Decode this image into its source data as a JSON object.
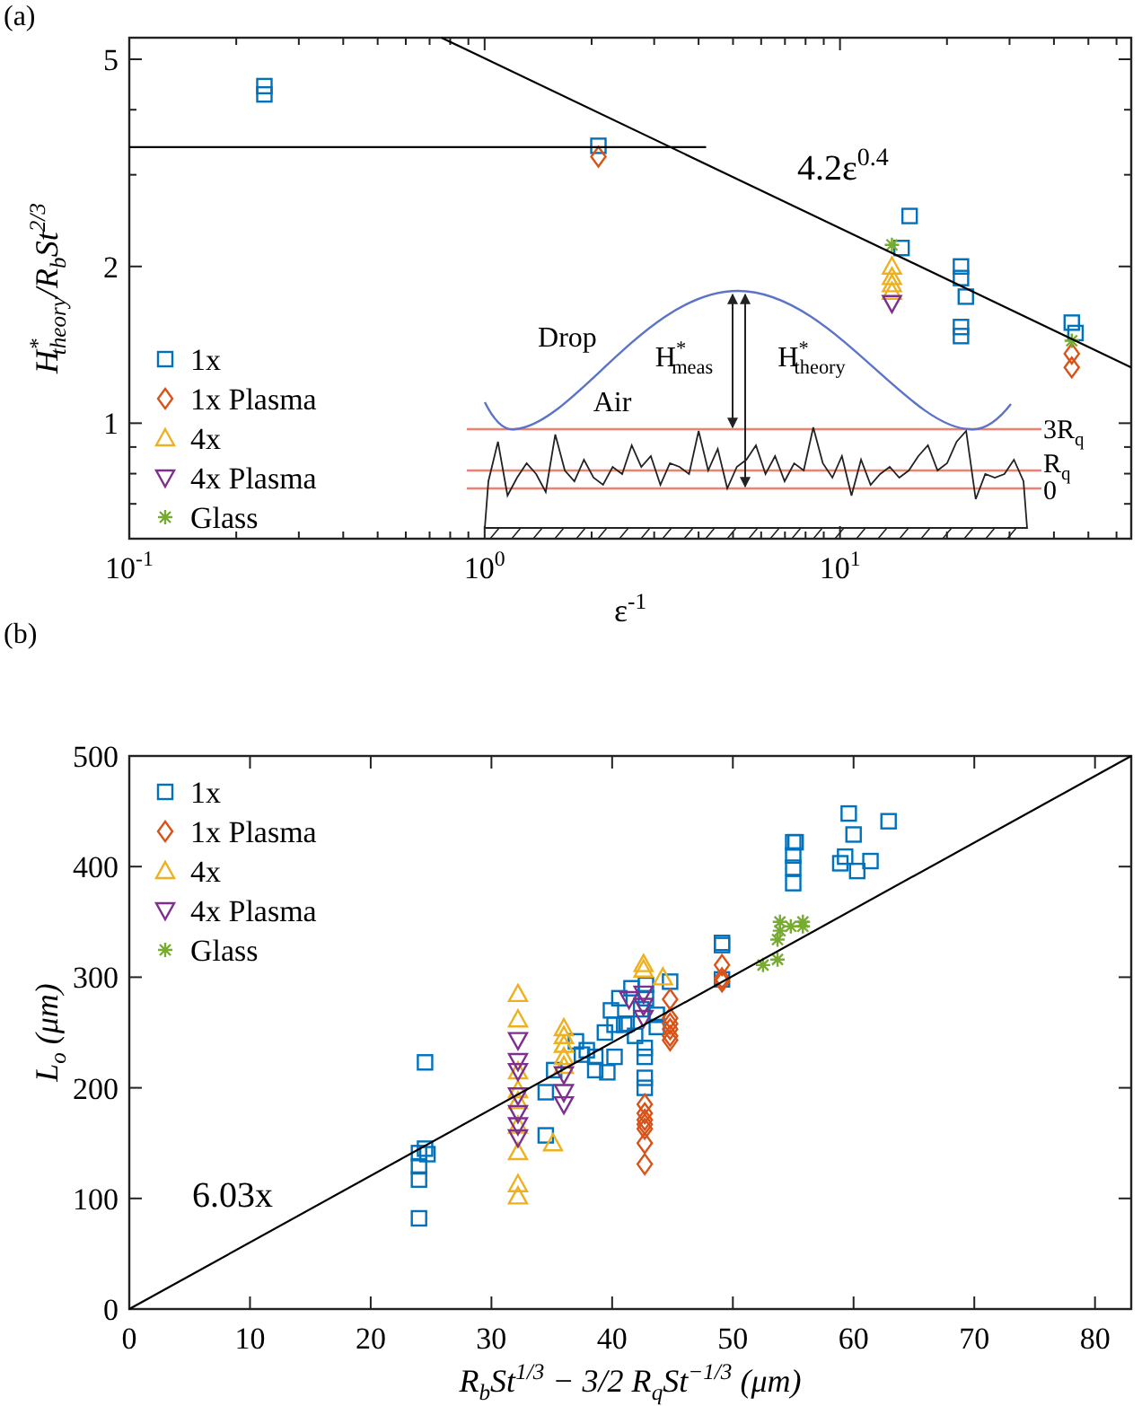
{
  "chart_data": [
    {
      "type": "scatter",
      "title": "(a)",
      "xlabel": "ε$^{-1}$",
      "ylabel": "H$^{*}$$_{theory}$/R$_{b}$St$^{2/3}$",
      "log": "xy",
      "legend": "bottom left",
      "xlim": [
        0.1,
        66
      ],
      "ylim": [
        0.6,
        5.5
      ],
      "xticks": [
        {
          "value": 0.1,
          "label": "10$^{-1}$"
        },
        {
          "value": 0.2,
          "label": null
        },
        {
          "value": 0.3,
          "label": null
        },
        {
          "value": 0.4,
          "label": null
        },
        {
          "value": 0.5,
          "label": null
        },
        {
          "value": 0.6,
          "label": null
        },
        {
          "value": 0.7,
          "label": null
        },
        {
          "value": 0.8,
          "label": null
        },
        {
          "value": 0.9,
          "label": null
        },
        {
          "value": 1,
          "label": "10$^{0}$"
        },
        {
          "value": 2,
          "label": null
        },
        {
          "value": 3,
          "label": null
        },
        {
          "value": 4,
          "label": null
        },
        {
          "value": 5,
          "label": null
        },
        {
          "value": 6,
          "label": null
        },
        {
          "value": 7,
          "label": null
        },
        {
          "value": 8,
          "label": null
        },
        {
          "value": 9,
          "label": null
        },
        {
          "value": 10,
          "label": "10$^{1}$"
        },
        {
          "value": 20,
          "label": null
        },
        {
          "value": 30,
          "label": null
        },
        {
          "value": 40,
          "label": null
        },
        {
          "value": 50,
          "label": null
        },
        {
          "value": 60,
          "label": null
        }
      ],
      "yticks": [
        {
          "value": 0.6,
          "label": null
        },
        {
          "value": 0.7,
          "label": null
        },
        {
          "value": 0.8,
          "label": null
        },
        {
          "value": 0.9,
          "label": null
        },
        1,
        2,
        {
          "value": 3,
          "label": null
        },
        {
          "value": 4,
          "label": null
        },
        5
      ],
      "annotations": [
        "Drop",
        "Air",
        "H$^{*}$$_{meas}$",
        "H$^{*}$$_{theory}$",
        "3R$_{q}$",
        "R$_{q}$",
        "0"
      ],
      "series": [
        {
          "name": "1x",
          "color": "#0072bd",
          "marker": "square",
          "x": [
            0.24,
            0.24,
            2.09,
            14.9,
            15.7,
            21.9,
            21.9,
            22.6,
            21.9,
            21.9,
            44.9,
            46
          ],
          "values": [
            4.44,
            4.28,
            3.41,
            2.17,
            2.5,
            2.0,
            1.9,
            1.75,
            1.53,
            1.47,
            1.56,
            1.49
          ]
        },
        {
          "name": "1x Plasma",
          "color": "#d95319",
          "marker": "diamond",
          "x": [
            2.09,
            44.9,
            44.9
          ],
          "values": [
            3.25,
            1.36,
            1.28
          ]
        },
        {
          "name": "4x",
          "color": "#edb120",
          "marker": "triangle",
          "x": [
            14,
            14,
            14,
            14
          ],
          "values": [
            2.0,
            1.91,
            1.85,
            1.79
          ]
        },
        {
          "name": "4x Plasma",
          "color": "#7e2f8e",
          "marker": "triangle-down",
          "x": [
            14
          ],
          "values": [
            1.7
          ]
        },
        {
          "name": "Glass",
          "color": "#77ac30",
          "marker": "cross",
          "x": [
            14,
            44.9
          ],
          "values": [
            2.2,
            1.44
          ]
        },
        {
          "type": "line",
          "color": "#000000",
          "marker": "none",
          "x": [
            0.1,
            4.2
          ],
          "values": [
            3.39,
            3.39
          ]
        },
        {
          "type": "line",
          "name": "4.2ε$^{0.4}$",
          "color": "#000000",
          "marker": "none",
          "x": [
            0.756,
            66
          ],
          "values": [
            5.5,
            1.28
          ]
        }
      ]
    },
    {
      "type": "scatter",
      "title": "(b)",
      "xlabel": "R$_{b}$St$^{1/3}$ − 3/2 R$_{q}$St$^{−1/3}$ (μm)",
      "ylabel": "L$_{o}$ (μm)",
      "legend": "top left",
      "xlim": [
        0,
        83
      ],
      "ylim": [
        0,
        500
      ],
      "xticks": [
        0,
        10,
        20,
        30,
        40,
        50,
        60,
        70,
        80
      ],
      "yticks": [
        0,
        100,
        200,
        300,
        400,
        500
      ],
      "series": [
        {
          "name": "1x",
          "color": "#0072bd",
          "marker": "square",
          "x": [
            24,
            24.5,
            24.7,
            24,
            24,
            24,
            24.5,
            34.5,
            34.5,
            35.2,
            37,
            37.5,
            37.9,
            38.6,
            38.6,
            39.6,
            40.2,
            39.4,
            39.9,
            40.2,
            40.6,
            41,
            41.2,
            41.6,
            41.9,
            42.4,
            42.8,
            42.8,
            42.7,
            42.7,
            42.7,
            42.7,
            43.7,
            43.7,
            44.8,
            49.1,
            49.1,
            49.1,
            55,
            55.2,
            55,
            55,
            55,
            59.6,
            60,
            59.3,
            58.9,
            60.3,
            61.4,
            62.9
          ],
          "values": [
            141,
            145,
            140,
            129,
            117,
            82,
            223,
            196,
            157,
            216,
            242,
            230,
            234,
            228,
            216,
            214,
            228,
            250,
            270,
            257,
            281,
            257,
            258,
            290,
            247,
            271,
            293,
            281,
            236,
            228,
            209,
            200,
            255,
            266,
            296,
            331,
            329,
            298,
            422,
            422,
            410,
            399,
            385,
            448,
            429,
            409,
            403,
            396,
            405,
            441
          ]
        },
        {
          "name": "1x Plasma",
          "color": "#d95319",
          "marker": "diamond",
          "x": [
            42.7,
            42.7,
            42.7,
            42.7,
            42.7,
            42.7,
            42.7,
            44.8,
            44.8,
            44.8,
            44.8,
            44.8,
            44.8,
            49.1,
            49.1,
            49.1
          ],
          "values": [
            185,
            177,
            171,
            167,
            163,
            150,
            131,
            280,
            263,
            258,
            253,
            247,
            243,
            311,
            299,
            296
          ]
        },
        {
          "name": "4x",
          "color": "#edb120",
          "marker": "triangle",
          "x": [
            32.2,
            32.2,
            32.2,
            32.2,
            32.2,
            32.2,
            32.2,
            32.2,
            32.2,
            36,
            36,
            36,
            36,
            36,
            35.1,
            42.6,
            42.6,
            44.2
          ],
          "values": [
            285,
            262,
            215,
            198,
            188,
            166,
            142,
            113,
            102,
            254,
            247,
            239,
            228,
            220,
            150,
            312,
            307,
            300
          ]
        },
        {
          "name": "4x Plasma",
          "color": "#7e2f8e",
          "marker": "triangle-down",
          "x": [
            32.2,
            32.2,
            32.2,
            32.2,
            32.2,
            32.2,
            32.2,
            36,
            36,
            36,
            41.4,
            42.6,
            42.6,
            42.6
          ],
          "values": [
            243,
            224,
            215,
            193,
            177,
            166,
            155,
            212,
            196,
            185,
            280,
            285,
            274,
            263
          ]
        },
        {
          "name": "Glass",
          "color": "#77ac30",
          "marker": "cross",
          "x": [
            52.5,
            53.7,
            53.7,
            53.9,
            53.9,
            54.8,
            55.8,
            55.8
          ],
          "values": [
            311,
            316,
            334,
            342,
            350,
            346,
            350,
            346
          ]
        },
        {
          "type": "line",
          "name": "6.03x",
          "color": "#000000",
          "marker": "none",
          "x": [
            0,
            83
          ],
          "values": [
            0,
            500
          ]
        }
      ]
    }
  ]
}
